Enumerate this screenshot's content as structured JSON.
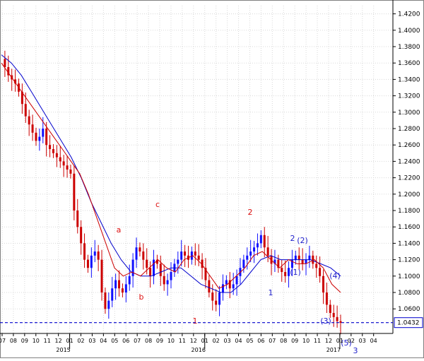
{
  "chart_data": {
    "type": "candlestick",
    "title": "",
    "xlabel": "",
    "ylabel": "",
    "ylim": [
      1.03,
      1.43
    ],
    "y_ticks": [
      "1.0600",
      "1.0800",
      "1.1000",
      "1.1200",
      "1.1400",
      "1.1600",
      "1.1800",
      "1.2000",
      "1.2200",
      "1.2400",
      "1.2600",
      "1.2800",
      "1.3000",
      "1.3200",
      "1.3400",
      "1.3600",
      "1.3800",
      "1.4000",
      "1.4200"
    ],
    "x_tick_labels": [
      "07",
      "08",
      "09",
      "10",
      "11",
      "12",
      "01",
      "02",
      "03",
      "04",
      "05",
      "06",
      "07",
      "08",
      "09",
      "10",
      "11",
      "12",
      "01",
      "02",
      "03",
      "04",
      "05",
      "06",
      "07",
      "08",
      "09",
      "10",
      "11",
      "12",
      "01",
      "02",
      "03",
      "04"
    ],
    "year_labels": [
      "2015",
      "2016",
      "2017"
    ],
    "current_price": "1.0432",
    "colors": {
      "up": "#1010ff",
      "down": "#cc0000",
      "ma_fast": "#cc0000",
      "ma_slow": "#0000cc",
      "price_line": "#0000cc",
      "frame": "#808080"
    },
    "grid": true,
    "wave_labels": [
      {
        "text": "a",
        "color": "#dd1111"
      },
      {
        "text": "b",
        "color": "#dd1111"
      },
      {
        "text": "c",
        "color": "#dd1111"
      },
      {
        "text": "1",
        "color": "#dd1111"
      },
      {
        "text": "2",
        "color": "#dd1111"
      },
      {
        "text": "1",
        "color": "#2222cc"
      },
      {
        "text": "2",
        "color": "#2222cc"
      },
      {
        "text": "(2)",
        "color": "#2222cc"
      },
      {
        "text": "(1)",
        "color": "#2222cc"
      },
      {
        "text": "(4)",
        "color": "#2222cc"
      },
      {
        "text": "(3)",
        "color": "#2222cc"
      },
      {
        "text": "(5)",
        "color": "#2222cc"
      },
      {
        "text": "3",
        "color": "#2222cc"
      }
    ],
    "closes": [
      1.365,
      1.355,
      1.345,
      1.34,
      1.335,
      1.325,
      1.31,
      1.295,
      1.285,
      1.275,
      1.265,
      1.27,
      1.28,
      1.26,
      1.255,
      1.25,
      1.245,
      1.24,
      1.235,
      1.23,
      1.225,
      1.18,
      1.16,
      1.14,
      1.12,
      1.11,
      1.125,
      1.13,
      1.12,
      1.08,
      1.06,
      1.07,
      1.085,
      1.095,
      1.085,
      1.08,
      1.09,
      1.1,
      1.12,
      1.135,
      1.13,
      1.12,
      1.11,
      1.1,
      1.12,
      1.115,
      1.1,
      1.09,
      1.095,
      1.105,
      1.115,
      1.12,
      1.13,
      1.125,
      1.12,
      1.13,
      1.125,
      1.12,
      1.11,
      1.095,
      1.08,
      1.07,
      1.065,
      1.08,
      1.09,
      1.095,
      1.085,
      1.09,
      1.1,
      1.11,
      1.12,
      1.125,
      1.13,
      1.135,
      1.14,
      1.15,
      1.135,
      1.125,
      1.115,
      1.12,
      1.11,
      1.105,
      1.1,
      1.11,
      1.12,
      1.125,
      1.12,
      1.115,
      1.12,
      1.125,
      1.115,
      1.11,
      1.1,
      1.08,
      1.065,
      1.055,
      1.05,
      1.045,
      1.043
    ],
    "fast_ma": [
      1.36,
      1.345,
      1.33,
      1.315,
      1.3,
      1.285,
      1.27,
      1.255,
      1.24,
      1.225,
      1.2,
      1.17,
      1.14,
      1.11,
      1.1,
      1.105,
      1.1,
      1.11,
      1.12,
      1.11,
      1.105,
      1.12,
      1.125,
      1.115,
      1.1,
      1.085,
      1.09,
      1.1,
      1.11,
      1.125,
      1.13,
      1.12,
      1.11,
      1.12,
      1.115,
      1.115,
      1.12,
      1.11,
      1.09,
      1.08
    ],
    "slow_ma": [
      1.37,
      1.36,
      1.345,
      1.325,
      1.305,
      1.285,
      1.265,
      1.245,
      1.22,
      1.19,
      1.165,
      1.14,
      1.12,
      1.105,
      1.1,
      1.1,
      1.105,
      1.11,
      1.11,
      1.1,
      1.09,
      1.085,
      1.08,
      1.08,
      1.09,
      1.105,
      1.12,
      1.125,
      1.12,
      1.12,
      1.12,
      1.12,
      1.115,
      1.11,
      1.1
    ]
  }
}
